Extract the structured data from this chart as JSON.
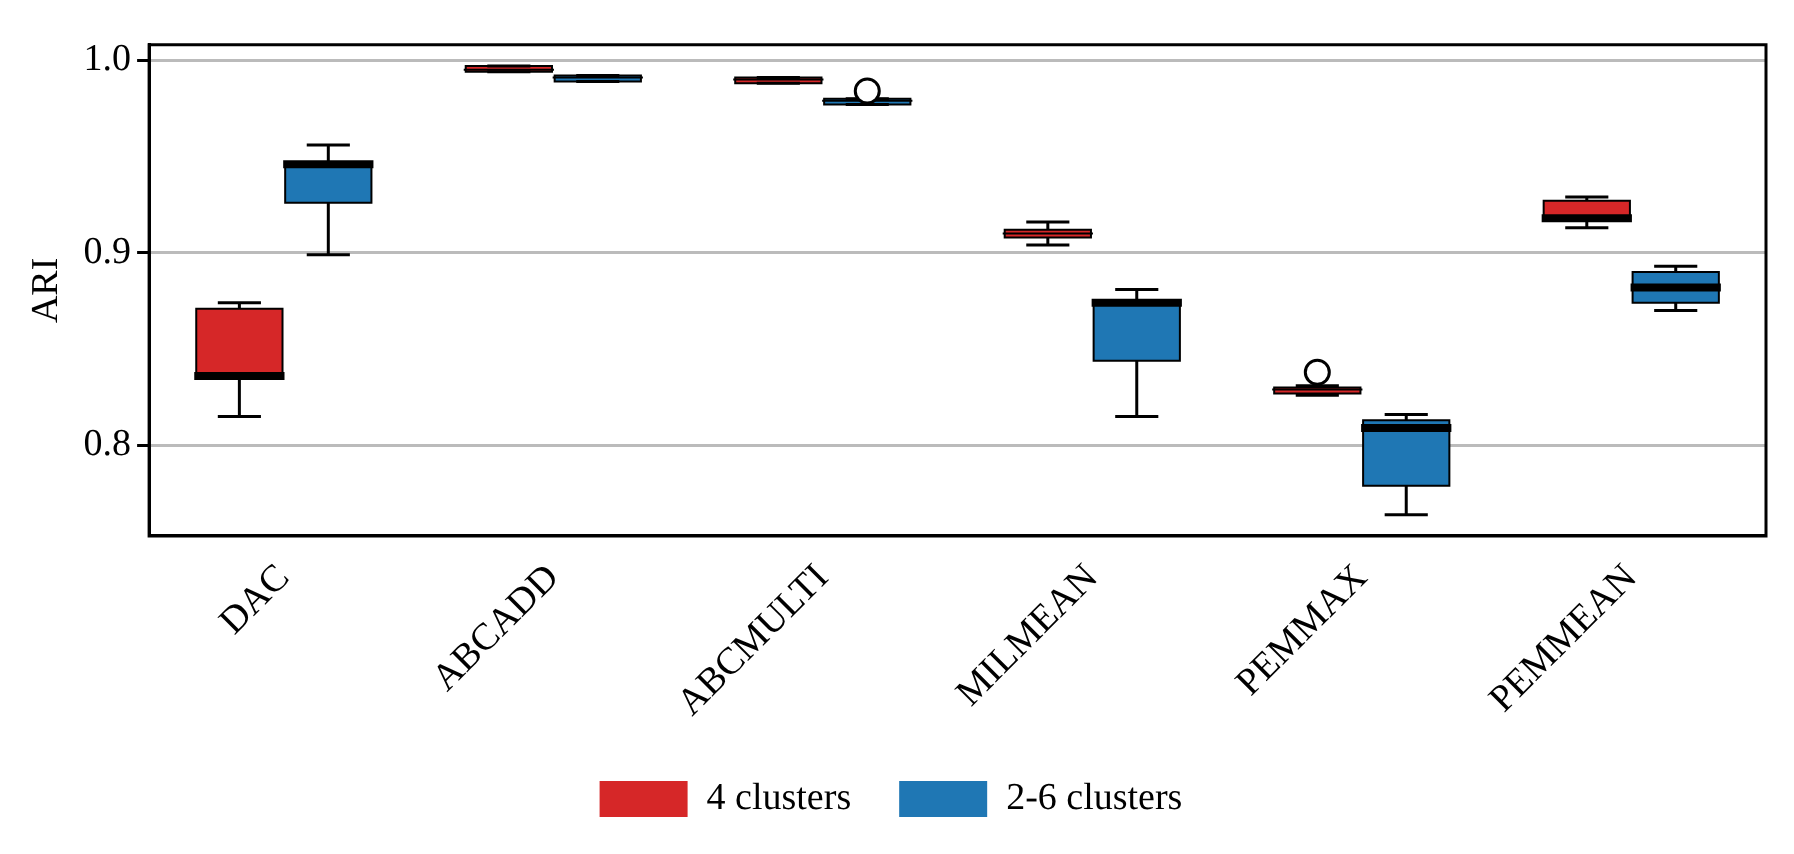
{
  "chart_data": {
    "type": "box",
    "ylabel": "ARI",
    "categories": [
      "DAC",
      "ABCADD",
      "ABCMULTI",
      "MILMEAN",
      "PEMMAX",
      "PEMMEAN"
    ],
    "ylim": [
      0.753,
      1.008
    ],
    "yticks": [
      {
        "value": 0.8,
        "label": "0.8"
      },
      {
        "value": 0.9,
        "label": "0.9"
      },
      {
        "value": 1.0,
        "label": "1.0"
      }
    ],
    "grid": "y",
    "legend": "bottom",
    "series": [
      {
        "name": "4 clusters",
        "color": "#d62728",
        "boxes": [
          {
            "low": 0.815,
            "q1": 0.836,
            "median": 0.836,
            "q3": 0.871,
            "high": 0.874
          },
          {
            "low": 0.994,
            "q1": 0.994,
            "median": 0.995,
            "q3": 0.997,
            "high": 0.997
          },
          {
            "low": 0.988,
            "q1": 0.988,
            "median": 0.99,
            "q3": 0.991,
            "high": 0.991
          },
          {
            "low": 0.904,
            "q1": 0.908,
            "median": 0.91,
            "q3": 0.912,
            "high": 0.916
          },
          {
            "low": 0.826,
            "q1": 0.827,
            "median": 0.829,
            "q3": 0.83,
            "high": 0.831,
            "outliers": [
              0.838
            ]
          },
          {
            "low": 0.913,
            "q1": 0.918,
            "median": 0.918,
            "q3": 0.927,
            "high": 0.929
          }
        ]
      },
      {
        "name": "2-6 clusters",
        "color": "#1f77b4",
        "boxes": [
          {
            "low": 0.899,
            "q1": 0.926,
            "median": 0.946,
            "q3": 0.946,
            "high": 0.956
          },
          {
            "low": 0.989,
            "q1": 0.989,
            "median": 0.991,
            "q3": 0.992,
            "high": 0.992
          },
          {
            "low": 0.977,
            "q1": 0.977,
            "median": 0.979,
            "q3": 0.98,
            "high": 0.98,
            "outliers": [
              0.984
            ]
          },
          {
            "low": 0.815,
            "q1": 0.844,
            "median": 0.874,
            "q3": 0.874,
            "high": 0.881
          },
          {
            "low": 0.764,
            "q1": 0.779,
            "median": 0.809,
            "q3": 0.813,
            "high": 0.816
          },
          {
            "low": 0.87,
            "q1": 0.874,
            "median": 0.882,
            "q3": 0.89,
            "high": 0.893
          }
        ]
      }
    ]
  }
}
